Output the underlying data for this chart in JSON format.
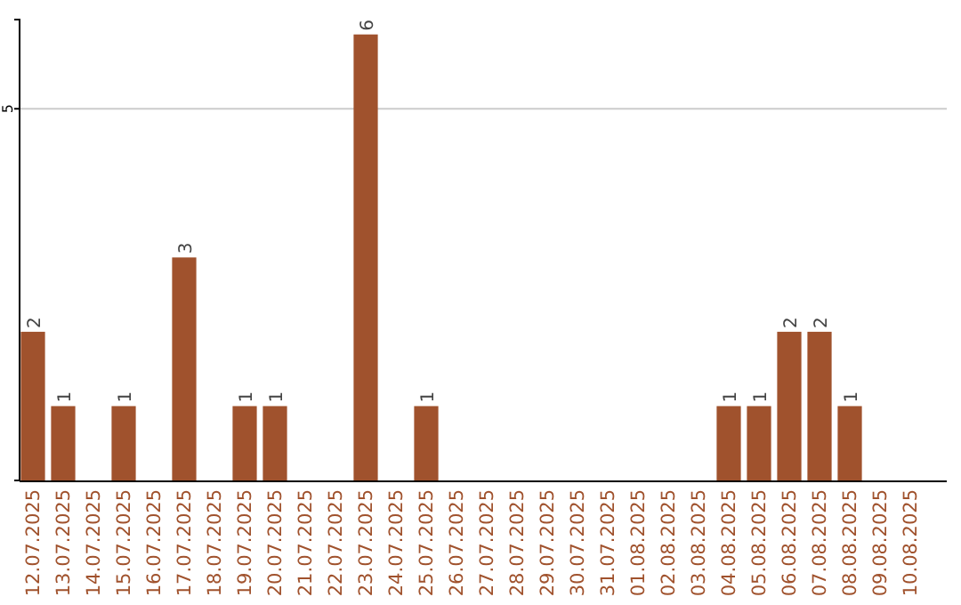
{
  "chart_data": {
    "type": "bar",
    "categories": [
      "12.07.2025",
      "13.07.2025",
      "14.07.2025",
      "15.07.2025",
      "16.07.2025",
      "17.07.2025",
      "18.07.2025",
      "19.07.2025",
      "20.07.2025",
      "21.07.2025",
      "22.07.2025",
      "23.07.2025",
      "24.07.2025",
      "25.07.2025",
      "26.07.2025",
      "27.07.2025",
      "28.07.2025",
      "29.07.2025",
      "30.07.2025",
      "31.07.2025",
      "01.08.2025",
      "02.08.2025",
      "03.08.2025",
      "04.08.2025",
      "05.08.2025",
      "06.08.2025",
      "07.08.2025",
      "08.08.2025",
      "09.08.2025",
      "10.08.2025"
    ],
    "values": [
      2,
      1,
      0,
      1,
      0,
      3,
      0,
      1,
      1,
      0,
      0,
      6,
      0,
      1,
      0,
      0,
      0,
      0,
      0,
      0,
      0,
      0,
      0,
      1,
      1,
      2,
      2,
      1,
      0,
      0
    ],
    "value_labels": [
      "2",
      "1",
      null,
      "1",
      null,
      "3",
      null,
      "1",
      "1",
      null,
      null,
      "6",
      null,
      "1",
      null,
      null,
      null,
      null,
      null,
      null,
      null,
      null,
      null,
      "1",
      "1",
      "2",
      "2",
      "1",
      null,
      null
    ],
    "color": "#a0522d",
    "ylim": [
      0,
      6.2
    ],
    "yticks": [
      5
    ],
    "grid": "y"
  }
}
